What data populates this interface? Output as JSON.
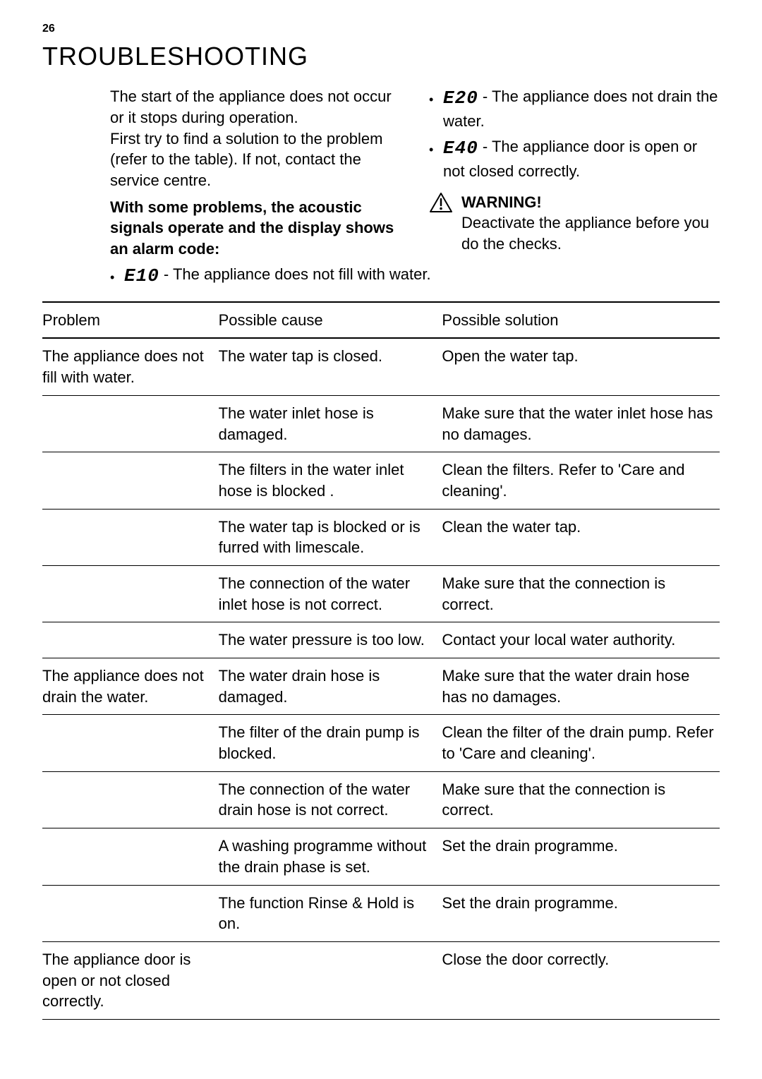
{
  "page_number": "26",
  "title": "TROUBLESHOOTING",
  "intro": {
    "para1": "The start of the appliance does not occur or it stops during operation.\nFirst try to find a solution to the problem (refer to the table). If not, contact the service centre.",
    "para2": "With some problems, the acoustic signals operate and the display shows an alarm code:",
    "codes": [
      {
        "code": "E10",
        "desc": " - The appliance does not fill with water."
      },
      {
        "code": "E20",
        "desc": " - The appliance does not drain the water."
      },
      {
        "code": "E40",
        "desc": " - The appliance door is open or not closed correctly."
      }
    ],
    "warning_label": "WARNING!",
    "warning_text": "Deactivate the appliance before you do the checks."
  },
  "table": {
    "headers": [
      "Problem",
      "Possible cause",
      "Possible solution"
    ],
    "rows": [
      [
        "The appliance does not fill with water.",
        "The water tap is closed.",
        "Open the water tap."
      ],
      [
        "",
        "The water inlet hose is damaged.",
        "Make sure that the water inlet hose has no damages."
      ],
      [
        "",
        "The filters in the water inlet hose is blocked .",
        "Clean the filters. Refer to 'Care and cleaning'."
      ],
      [
        "",
        "The water tap is blocked or is furred with limescale.",
        "Clean the water tap."
      ],
      [
        "",
        "The connection of the water inlet hose is not correct.",
        "Make sure that the connection is correct."
      ],
      [
        "",
        "The water pressure is too low.",
        "Contact your local water authority."
      ],
      [
        "The appliance does not drain the water.",
        "The water drain hose is damaged.",
        "Make sure that the water drain hose has no damages."
      ],
      [
        "",
        "The filter of the drain pump is blocked.",
        "Clean the filter of the drain pump. Refer to 'Care and cleaning'."
      ],
      [
        "",
        "The connection of the water drain hose is not correct.",
        "Make sure that the connection is correct."
      ],
      [
        "",
        "A washing programme without the drain phase is set.",
        "Set the drain programme."
      ],
      [
        "",
        "The function Rinse & Hold is on.",
        "Set the drain programme."
      ],
      [
        "The appliance door is open or not closed correctly.",
        "",
        "Close the door correctly."
      ]
    ]
  }
}
